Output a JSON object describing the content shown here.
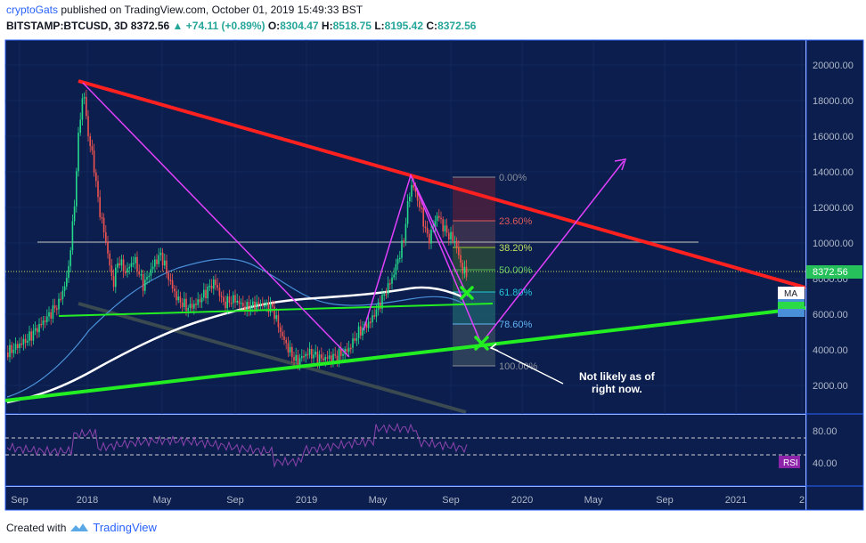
{
  "header": {
    "user": "cryptoGats",
    "published": "published on TradingView.com, October 01, 2019 15:49:33 BST",
    "symbol": "BITSTAMP:BTCUSD, 3D",
    "last": "8372.56",
    "change": "+74.11 (+0.89%)",
    "open_label": "O:",
    "open": "8304.47",
    "high_label": "H:",
    "high": "8518.75",
    "low_label": "L:",
    "low": "8195.42",
    "close_label": "C:",
    "close": "8372.56"
  },
  "price_axis": [
    "20000.00",
    "18000.00",
    "16000.00",
    "14000.00",
    "12000.00",
    "10000.00",
    "8000.00",
    "6000.00",
    "4000.00",
    "2000.00"
  ],
  "current_price_tag": "8372.56",
  "ma_tag": "MA",
  "fib_levels": [
    "0.00%",
    "23.60%",
    "38.20%",
    "50.00%",
    "61.80%",
    "78.60%",
    "100.00%"
  ],
  "annotation": "Not likely as of right now.",
  "rsi": {
    "axis": [
      "80.00",
      "40.00"
    ],
    "tag": "RSI"
  },
  "time_axis": [
    "Sep",
    "2018",
    "May",
    "Sep",
    "2019",
    "May",
    "Sep",
    "2020",
    "May",
    "Sep",
    "2021",
    "2"
  ],
  "footer": {
    "created_with": "Created with",
    "brand": "TradingView"
  },
  "colors": {
    "background": "#0b1e4e",
    "up_candle": "#26a69a",
    "resistance": "#ff2020",
    "support": "#22ee22",
    "projection": "#e040fb",
    "ma_white": "#ffffff",
    "ma_blue": "#4a90d9"
  },
  "icons": {
    "change_arrow": "triangle-up-icon",
    "target_marker": "x-marker-icon",
    "brand_logo": "tradingview-cloud-icon"
  }
}
